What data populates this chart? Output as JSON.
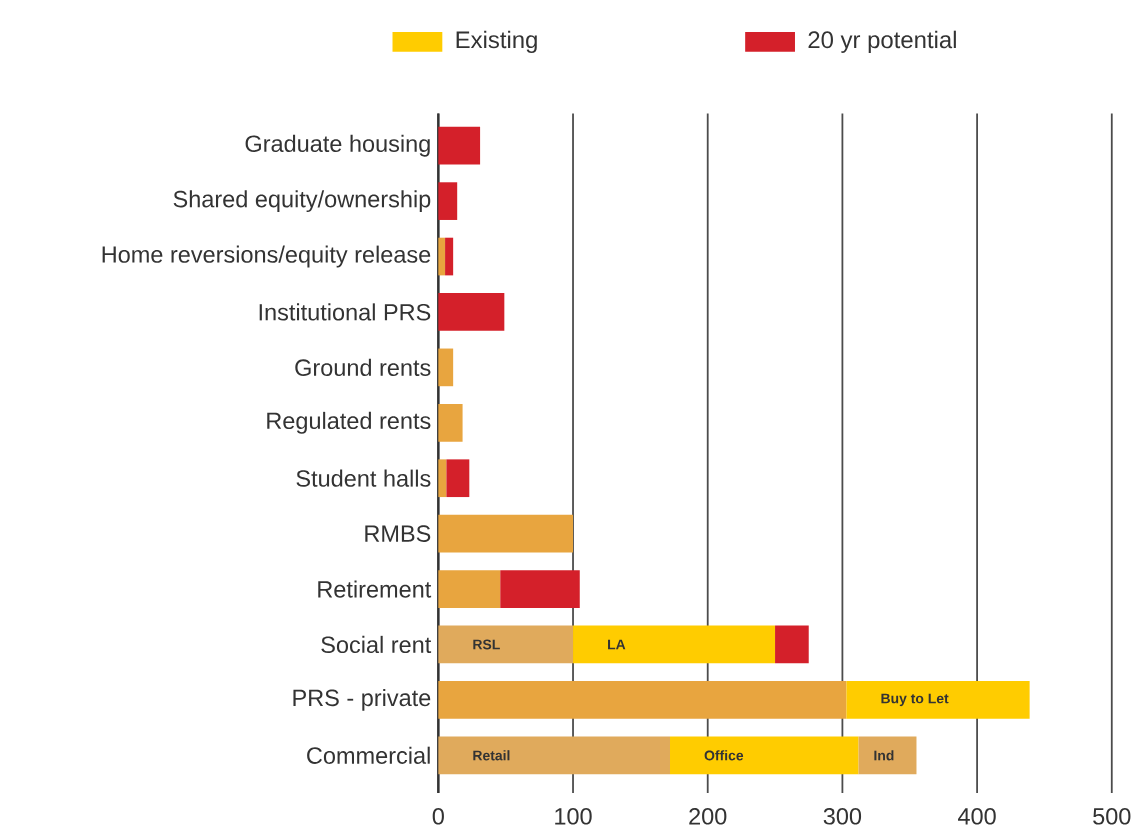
{
  "chart_data": {
    "type": "bar",
    "orientation": "horizontal",
    "stacked": true,
    "categories": [
      "Graduate housing",
      "Shared equity/ownership",
      "Home reversions/equity release",
      "Institutional PRS",
      "Ground rents",
      "Regulated rents",
      "Student halls",
      "RMBS",
      "Retirement",
      "Social rent",
      "PRS - private",
      "Commercial"
    ],
    "series": [
      {
        "color": "#e8a53f",
        "colors": [
          "#e8a53f",
          "#e8a53f",
          "#e8a53f",
          "#e8a53f",
          "#e8a53f",
          "#e8a53f",
          "#e8a53f",
          "#e8a53f",
          "#e8a53f",
          "#e0aa5c",
          "#e8a53f",
          "#e0aa5c"
        ],
        "values": [
          null,
          null,
          5,
          null,
          11,
          18,
          6,
          100,
          46,
          100,
          303,
          172
        ],
        "value_labels": [
          null,
          null,
          null,
          null,
          null,
          null,
          null,
          null,
          null,
          "RSL",
          null,
          "Retail"
        ]
      },
      {
        "name": "Existing",
        "color": "#ffcc00",
        "values": [
          null,
          null,
          null,
          null,
          null,
          null,
          null,
          null,
          null,
          150,
          136,
          140
        ],
        "value_labels": [
          null,
          null,
          null,
          null,
          null,
          null,
          null,
          null,
          null,
          "LA",
          "Buy to Let",
          "Office"
        ]
      },
      {
        "color": "#e0aa5c",
        "values": [
          null,
          null,
          null,
          null,
          null,
          null,
          null,
          null,
          null,
          null,
          null,
          43
        ],
        "value_labels": [
          null,
          null,
          null,
          null,
          null,
          null,
          null,
          null,
          null,
          null,
          null,
          "Ind"
        ]
      },
      {
        "name": "20 yr potential",
        "color": "#d4202a",
        "values": [
          31,
          14,
          6,
          49,
          null,
          null,
          17,
          null,
          59,
          25,
          null,
          null
        ]
      }
    ],
    "xlim": [
      0,
      500
    ],
    "xticks": [
      0,
      100,
      200,
      300,
      400,
      500
    ],
    "grid": "x",
    "legend": "top"
  }
}
